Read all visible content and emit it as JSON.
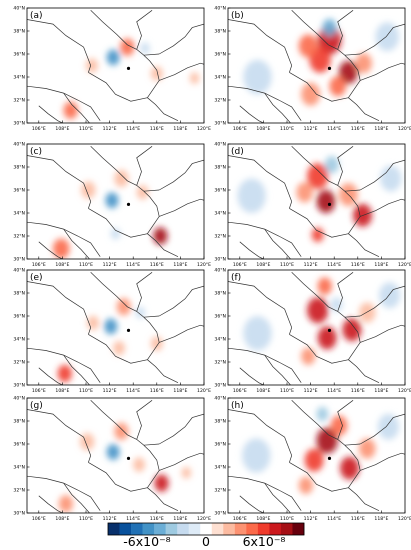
{
  "figure": {
    "panels": [
      {
        "id": "a",
        "label": "(a)",
        "intensity": "weak",
        "features": [
          {
            "lon": 112.3,
            "lat": 35.7,
            "v": -0.6,
            "r": 0.55
          },
          {
            "lon": 113.5,
            "lat": 36.6,
            "v": 0.45,
            "r": 0.6
          },
          {
            "lon": 108.7,
            "lat": 31.1,
            "v": 0.5,
            "r": 0.6
          },
          {
            "lon": 110.5,
            "lat": 35.0,
            "v": 0.25,
            "r": 0.5
          },
          {
            "lon": 116.0,
            "lat": 34.3,
            "v": 0.3,
            "r": 0.5
          },
          {
            "lon": 115.0,
            "lat": 36.5,
            "v": -0.2,
            "r": 0.4
          },
          {
            "lon": 119.2,
            "lat": 33.9,
            "v": 0.25,
            "r": 0.4
          }
        ]
      },
      {
        "id": "b",
        "label": "(b)",
        "intensity": "strong",
        "features": [
          {
            "lon": 113.6,
            "lat": 37.2,
            "v": 0.75,
            "r": 1.0
          },
          {
            "lon": 112.8,
            "lat": 35.5,
            "v": 0.6,
            "r": 0.9
          },
          {
            "lon": 115.2,
            "lat": 34.4,
            "v": 0.85,
            "r": 0.8
          },
          {
            "lon": 114.3,
            "lat": 33.2,
            "v": 0.5,
            "r": 0.7
          },
          {
            "lon": 113.6,
            "lat": 38.3,
            "v": -0.55,
            "r": 0.6
          },
          {
            "lon": 116.5,
            "lat": 35.2,
            "v": 0.4,
            "r": 0.7
          },
          {
            "lon": 111.8,
            "lat": 36.7,
            "v": 0.45,
            "r": 0.8
          },
          {
            "lon": 107.5,
            "lat": 34.0,
            "v": -0.3,
            "r": 1.2
          },
          {
            "lon": 118.5,
            "lat": 37.5,
            "v": -0.3,
            "r": 1.0
          },
          {
            "lon": 112.0,
            "lat": 32.5,
            "v": 0.35,
            "r": 0.8
          }
        ]
      },
      {
        "id": "c",
        "label": "(c)",
        "intensity": "weak",
        "features": [
          {
            "lon": 112.2,
            "lat": 35.1,
            "v": -0.6,
            "r": 0.55
          },
          {
            "lon": 116.3,
            "lat": 32.0,
            "v": 0.85,
            "r": 0.6
          },
          {
            "lon": 113.0,
            "lat": 37.0,
            "v": 0.3,
            "r": 0.6
          },
          {
            "lon": 107.9,
            "lat": 30.9,
            "v": 0.45,
            "r": 0.7
          },
          {
            "lon": 110.2,
            "lat": 36.0,
            "v": 0.2,
            "r": 0.6
          },
          {
            "lon": 114.8,
            "lat": 35.8,
            "v": 0.25,
            "r": 0.5
          },
          {
            "lon": 112.5,
            "lat": 32.2,
            "v": -0.25,
            "r": 0.4
          }
        ]
      },
      {
        "id": "d",
        "label": "(d)",
        "intensity": "strong",
        "features": [
          {
            "lon": 113.3,
            "lat": 35.0,
            "v": 0.85,
            "r": 0.8
          },
          {
            "lon": 112.6,
            "lat": 37.2,
            "v": 0.6,
            "r": 0.9
          },
          {
            "lon": 116.4,
            "lat": 33.8,
            "v": 0.75,
            "r": 0.8
          },
          {
            "lon": 112.6,
            "lat": 32.1,
            "v": 0.6,
            "r": 0.5
          },
          {
            "lon": 113.8,
            "lat": 38.2,
            "v": -0.35,
            "r": 0.6
          },
          {
            "lon": 115.2,
            "lat": 35.6,
            "v": 0.4,
            "r": 0.8
          },
          {
            "lon": 107.0,
            "lat": 35.5,
            "v": -0.3,
            "r": 1.2
          },
          {
            "lon": 118.8,
            "lat": 37.0,
            "v": -0.3,
            "r": 0.9
          },
          {
            "lon": 111.5,
            "lat": 35.8,
            "v": 0.4,
            "r": 0.7
          }
        ]
      },
      {
        "id": "e",
        "label": "(e)",
        "intensity": "weak",
        "features": [
          {
            "lon": 112.1,
            "lat": 35.1,
            "v": -0.6,
            "r": 0.55
          },
          {
            "lon": 108.2,
            "lat": 31.0,
            "v": 0.65,
            "r": 0.6
          },
          {
            "lon": 113.2,
            "lat": 36.8,
            "v": 0.35,
            "r": 0.6
          },
          {
            "lon": 112.8,
            "lat": 33.2,
            "v": 0.3,
            "r": 0.5
          },
          {
            "lon": 116.0,
            "lat": 33.6,
            "v": 0.3,
            "r": 0.5
          },
          {
            "lon": 110.6,
            "lat": 35.4,
            "v": 0.2,
            "r": 0.5
          },
          {
            "lon": 114.6,
            "lat": 36.3,
            "v": -0.2,
            "r": 0.4
          }
        ]
      },
      {
        "id": "f",
        "label": "(f)",
        "intensity": "strong",
        "features": [
          {
            "lon": 112.6,
            "lat": 36.5,
            "v": 0.8,
            "r": 0.9
          },
          {
            "lon": 113.4,
            "lat": 34.1,
            "v": 0.75,
            "r": 0.8
          },
          {
            "lon": 115.5,
            "lat": 34.8,
            "v": 0.7,
            "r": 0.8
          },
          {
            "lon": 113.2,
            "lat": 38.6,
            "v": 0.55,
            "r": 0.6
          },
          {
            "lon": 111.8,
            "lat": 32.5,
            "v": 0.35,
            "r": 0.6
          },
          {
            "lon": 116.8,
            "lat": 36.3,
            "v": 0.3,
            "r": 0.7
          },
          {
            "lon": 107.5,
            "lat": 34.5,
            "v": -0.3,
            "r": 1.2
          },
          {
            "lon": 118.7,
            "lat": 37.8,
            "v": -0.3,
            "r": 0.9
          },
          {
            "lon": 114.2,
            "lat": 37.0,
            "v": -0.3,
            "r": 0.5
          }
        ]
      },
      {
        "id": "g",
        "label": "(g)",
        "intensity": "weak",
        "features": [
          {
            "lon": 112.3,
            "lat": 35.3,
            "v": -0.6,
            "r": 0.55
          },
          {
            "lon": 116.4,
            "lat": 32.6,
            "v": 0.75,
            "r": 0.6
          },
          {
            "lon": 113.0,
            "lat": 37.1,
            "v": 0.35,
            "r": 0.6
          },
          {
            "lon": 108.3,
            "lat": 30.8,
            "v": 0.4,
            "r": 0.6
          },
          {
            "lon": 110.1,
            "lat": 36.2,
            "v": 0.25,
            "r": 0.6
          },
          {
            "lon": 114.5,
            "lat": 34.2,
            "v": 0.25,
            "r": 0.5
          },
          {
            "lon": 118.5,
            "lat": 33.5,
            "v": 0.2,
            "r": 0.4
          }
        ]
      },
      {
        "id": "h",
        "label": "(h)",
        "intensity": "strong",
        "features": [
          {
            "lon": 113.4,
            "lat": 36.3,
            "v": 0.9,
            "r": 0.9
          },
          {
            "lon": 112.3,
            "lat": 34.6,
            "v": 0.65,
            "r": 0.8
          },
          {
            "lon": 115.3,
            "lat": 33.9,
            "v": 0.7,
            "r": 0.8
          },
          {
            "lon": 114.4,
            "lat": 37.6,
            "v": 0.5,
            "r": 0.7
          },
          {
            "lon": 116.8,
            "lat": 35.6,
            "v": 0.4,
            "r": 0.7
          },
          {
            "lon": 111.6,
            "lat": 32.4,
            "v": 0.35,
            "r": 0.6
          },
          {
            "lon": 107.4,
            "lat": 35.0,
            "v": -0.3,
            "r": 1.2
          },
          {
            "lon": 118.6,
            "lat": 37.5,
            "v": -0.3,
            "r": 0.9
          },
          {
            "lon": 113.0,
            "lat": 38.6,
            "v": -0.35,
            "r": 0.5
          }
        ]
      }
    ],
    "axes": {
      "lon_ticks": [
        "106°E",
        "108°E",
        "110°E",
        "112°E",
        "114°E",
        "116°E",
        "118°E",
        "120°E"
      ],
      "lat_ticks": [
        "30°N",
        "32°N",
        "34°N",
        "36°N",
        "38°N",
        "40°N"
      ],
      "lon_range": [
        105,
        120
      ],
      "lat_range": [
        30,
        40
      ]
    },
    "station": {
      "lon": 113.6,
      "lat": 34.75
    },
    "colorbar": {
      "labels": [
        "-6x10⁻⁸",
        "0",
        "6x10⁻⁸"
      ],
      "colors": [
        "#08306b",
        "#08519c",
        "#2171b5",
        "#4292c6",
        "#6baed6",
        "#9ecae1",
        "#c6dbef",
        "#deebf7",
        "#ffffff",
        "#fee0d2",
        "#fcbba1",
        "#fc9272",
        "#fb6a4a",
        "#ef3b2c",
        "#cb181d",
        "#a50f15",
        "#67000d"
      ]
    }
  }
}
